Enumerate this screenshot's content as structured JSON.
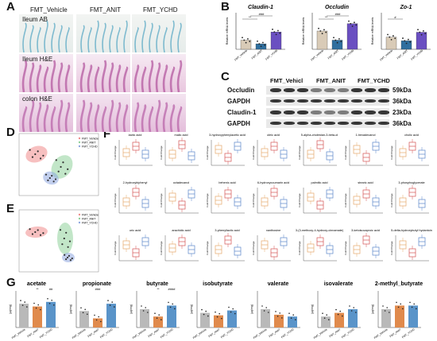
{
  "panels": [
    "A",
    "B",
    "C",
    "D",
    "E",
    "F",
    "G"
  ],
  "panel_a": {
    "columns": [
      "FMT_Vehicle",
      "FMT_ANIT",
      "FMT_YCHD"
    ],
    "rows": [
      "Ileum AB",
      "Ileum H&E",
      "colon H&E"
    ]
  },
  "panel_c": {
    "header": [
      "FMT_Vehicl",
      "FMT_ANIT",
      "FMT_YCHD"
    ],
    "blots": [
      {
        "name": "Occludin",
        "size": "59kDa"
      },
      {
        "name": "GAPDH",
        "size": "36kDa"
      },
      {
        "name": "Claudin-1",
        "size": "23kDa"
      },
      {
        "name": "GAPDH",
        "size": "36kDa"
      }
    ]
  },
  "panel_d": {
    "legend": [
      "FMT_Vehicle",
      "FMT_ANIT",
      "FMT_YCHD"
    ]
  },
  "panel_e": {
    "legend": [
      "FMT_Vehicle",
      "FMT_ANIT",
      "FMT_YCHD"
    ]
  },
  "panel_f": {
    "ylabel": "Fold Change",
    "metabolites": [
      "lactic acid",
      "malic acid",
      "3-hydroxyphenylacetic acid",
      "oleic acid",
      "5-alpha-cholestan-3-beta-ol",
      "1-hexadecanol",
      "cholic acid",
      "2-hydroxybiphenyl",
      "octadecanol",
      "behenic acid",
      "6-hydroxycoumarin acid",
      "palmitic acid",
      "stearic acid",
      "3-phosphoglycerate",
      "uric acid",
      "arachidic acid",
      "3-phenyllactic acid",
      "xanthosine",
      "3-(3-methoxy-4-hydroxy-cinnamate)",
      "3-ketoisocaproic acid",
      "5-delta-hydroxybutyl hydantoin"
    ]
  },
  "chart_data": [
    {
      "type": "bar",
      "title": "Claudin-1",
      "ylabel": "Relative mRNA levels",
      "categories": [
        "FMT_Vehicle",
        "FMT_ANIT",
        "FMT_YCHD"
      ],
      "values": [
        1.0,
        0.6,
        1.9
      ],
      "colors": [
        "#d9cbb7",
        "#2f6f9f",
        "#6a4fc1"
      ],
      "ylim": [
        0,
        4
      ],
      "annotations": [
        "**",
        "###"
      ]
    },
    {
      "type": "bar",
      "title": "Occludin",
      "ylabel": "Relative mRNA levels",
      "categories": [
        "FMT_Vehicle",
        "FMT_ANIT",
        "FMT_YCHD"
      ],
      "values": [
        1.0,
        0.5,
        1.4
      ],
      "colors": [
        "#d9cbb7",
        "#2f6f9f",
        "#6a4fc1"
      ],
      "ylim": [
        0,
        2
      ],
      "annotations": [
        "**",
        "###"
      ]
    },
    {
      "type": "bar",
      "title": "Zo-1",
      "ylabel": "Relative mRNA levels",
      "categories": [
        "FMT_Vehicle",
        "FMT_ANIT",
        "FMT_YCHD"
      ],
      "values": [
        1.0,
        0.7,
        1.4
      ],
      "colors": [
        "#d9cbb7",
        "#2f6f9f",
        "#6a4fc1"
      ],
      "ylim": [
        0,
        3
      ],
      "annotations": [
        "#"
      ]
    },
    {
      "type": "bar",
      "title": "acetate",
      "ylabel": "(μg/mg)",
      "categories": [
        "FMT_Vehicle",
        "FMT_ANIT",
        "FMT_YCHD"
      ],
      "values": [
        2.6,
        2.3,
        2.8
      ],
      "ylim": [
        0,
        4
      ],
      "colors": [
        "#b9b9b9",
        "#e08a4c",
        "#5a94c9"
      ],
      "annotations": [
        "**",
        "##"
      ]
    },
    {
      "type": "bar",
      "title": "propionate",
      "ylabel": "(μg/mg)",
      "categories": [
        "FMT_Vehicle",
        "FMT_ANIT",
        "FMT_YCHD"
      ],
      "values": [
        0.9,
        0.5,
        1.3
      ],
      "ylim": [
        0,
        2
      ],
      "colors": [
        "#b9b9b9",
        "#e08a4c",
        "#5a94c9"
      ],
      "annotations": [
        "###"
      ]
    },
    {
      "type": "bar",
      "title": "butyrate",
      "ylabel": "(μg/mg)",
      "categories": [
        "FMT_Vehicle",
        "FMT_ANIT",
        "FMT_YCHD"
      ],
      "values": [
        0.5,
        0.3,
        0.6
      ],
      "ylim": [
        0,
        1
      ],
      "colors": [
        "#b9b9b9",
        "#e08a4c",
        "#5a94c9"
      ],
      "annotations": [
        "**",
        "####"
      ]
    },
    {
      "type": "bar",
      "title": "isobutyrate",
      "ylabel": "(μg/mg)",
      "categories": [
        "FMT_Vehicle",
        "FMT_ANIT",
        "FMT_YCHD"
      ],
      "values": [
        0.06,
        0.05,
        0.07
      ],
      "ylim": [
        0,
        0.15
      ],
      "colors": [
        "#b9b9b9",
        "#e08a4c",
        "#5a94c9"
      ],
      "annotations": []
    },
    {
      "type": "bar",
      "title": "valerate",
      "ylabel": "(μg/mg)",
      "categories": [
        "FMT_Vehicle",
        "FMT_ANIT",
        "FMT_YCHD"
      ],
      "values": [
        0.05,
        0.035,
        0.03
      ],
      "ylim": [
        0,
        0.1
      ],
      "colors": [
        "#b9b9b9",
        "#e08a4c",
        "#5a94c9"
      ],
      "annotations": []
    },
    {
      "type": "bar",
      "title": "isovalerate",
      "ylabel": "(μg/mg)",
      "categories": [
        "FMT_Vehicle",
        "FMT_ANIT",
        "FMT_YCHD"
      ],
      "values": [
        0.03,
        0.04,
        0.05
      ],
      "ylim": [
        0,
        0.1
      ],
      "colors": [
        "#b9b9b9",
        "#e08a4c",
        "#5a94c9"
      ],
      "annotations": []
    },
    {
      "type": "bar",
      "title": "2-methyl_butyrate",
      "ylabel": "(μg/mg)",
      "categories": [
        "FMT_Vehicle",
        "FMT_ANIT",
        "FMT_YCHD"
      ],
      "values": [
        0.05,
        0.06,
        0.06
      ],
      "ylim": [
        0,
        0.1
      ],
      "colors": [
        "#b9b9b9",
        "#e08a4c",
        "#5a94c9"
      ],
      "annotations": []
    }
  ]
}
